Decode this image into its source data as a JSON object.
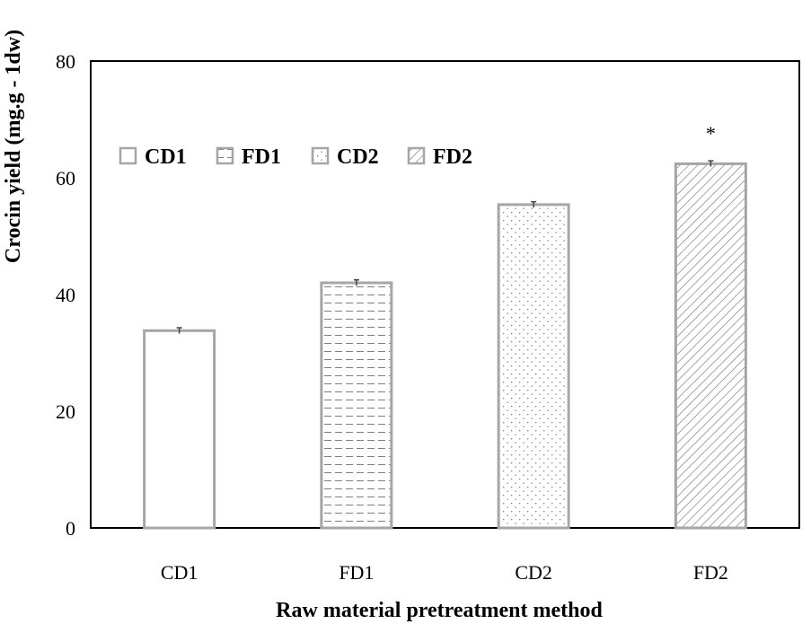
{
  "chart_data": {
    "type": "bar",
    "title": "",
    "xlabel": "Raw material pretreatment method",
    "ylabel": "Crocin yield (mg.g - 1dw)",
    "categories": [
      "CD1",
      "FD1",
      "CD2",
      "FD2"
    ],
    "values": [
      33.8,
      42.0,
      55.4,
      62.4
    ],
    "errors": [
      0.5,
      0.5,
      0.5,
      0.5
    ],
    "ylim": [
      0,
      80
    ],
    "yticks": [
      "0",
      "20",
      "40",
      "60",
      "80"
    ],
    "patterns": [
      "none",
      "dashes",
      "dots",
      "diagonal"
    ],
    "legend": {
      "placement": "upper-left",
      "entries": [
        "CD1",
        "FD1",
        "CD2",
        "FD2"
      ]
    },
    "annotations": [
      {
        "category": "FD2",
        "text": "*"
      }
    ],
    "colors": {
      "bar_edge": "#a6a6a6",
      "pattern": "#7f7f7f",
      "axis": "#000000"
    }
  }
}
